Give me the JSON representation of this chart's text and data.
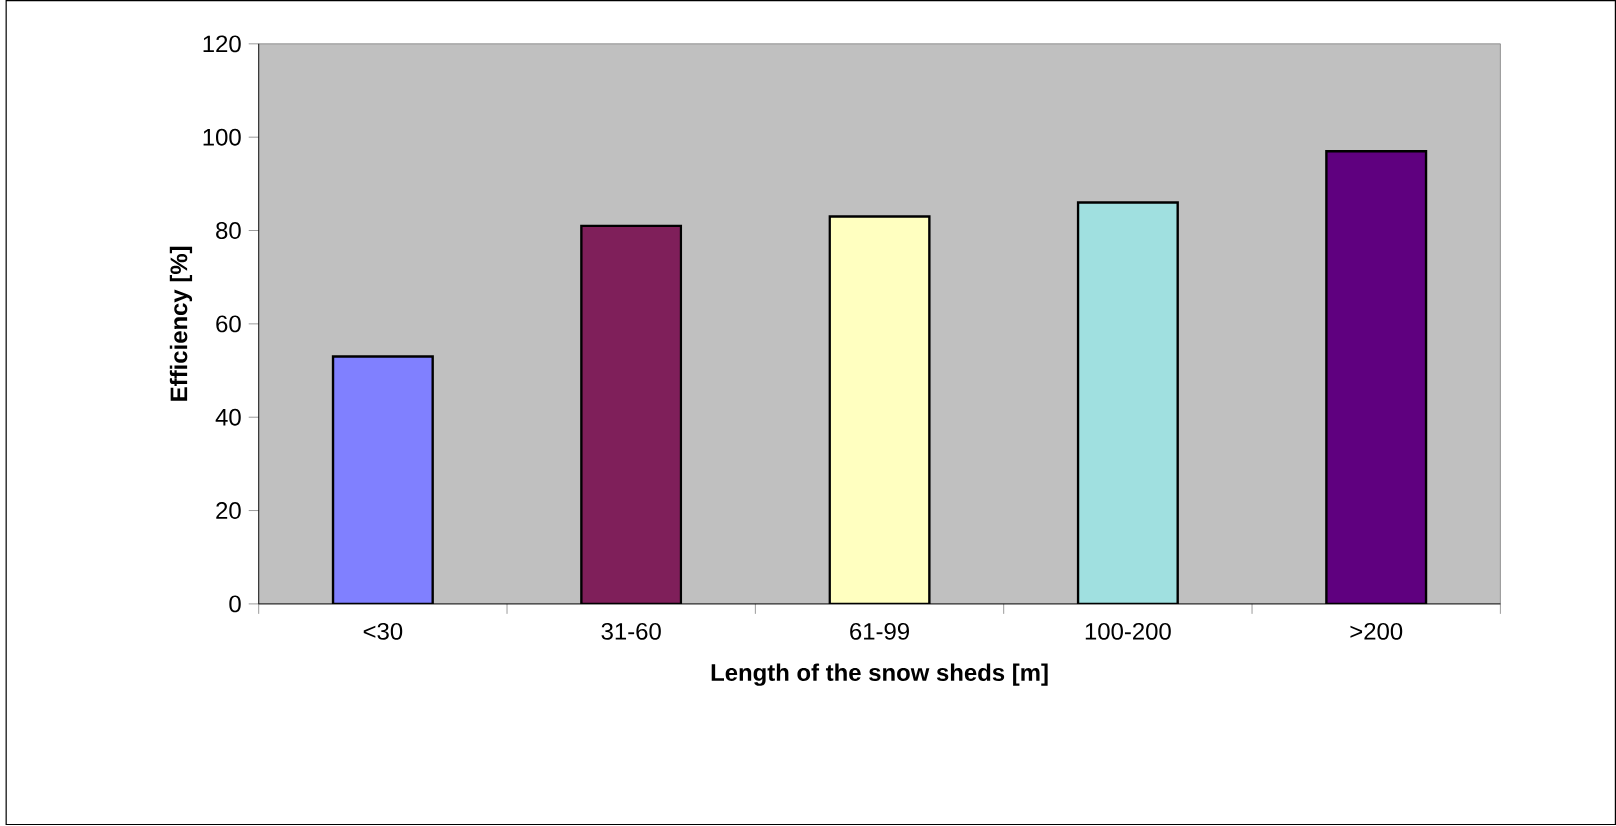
{
  "chart_data": {
    "type": "bar",
    "xlabel": "Length of the snow sheds [m]",
    "ylabel": "Efficiency [%]",
    "categories": [
      "<30",
      "31-60",
      "61-99",
      "100-200",
      ">200"
    ],
    "values": [
      53,
      81,
      83,
      86,
      97
    ],
    "colors": [
      "#8080ff",
      "#7f1f5a",
      "#ffffc0",
      "#a0e0e0",
      "#5f007f"
    ],
    "ylim": [
      0,
      120
    ],
    "yticks": [
      0,
      20,
      40,
      60,
      80,
      100,
      120
    ],
    "grid": false
  }
}
